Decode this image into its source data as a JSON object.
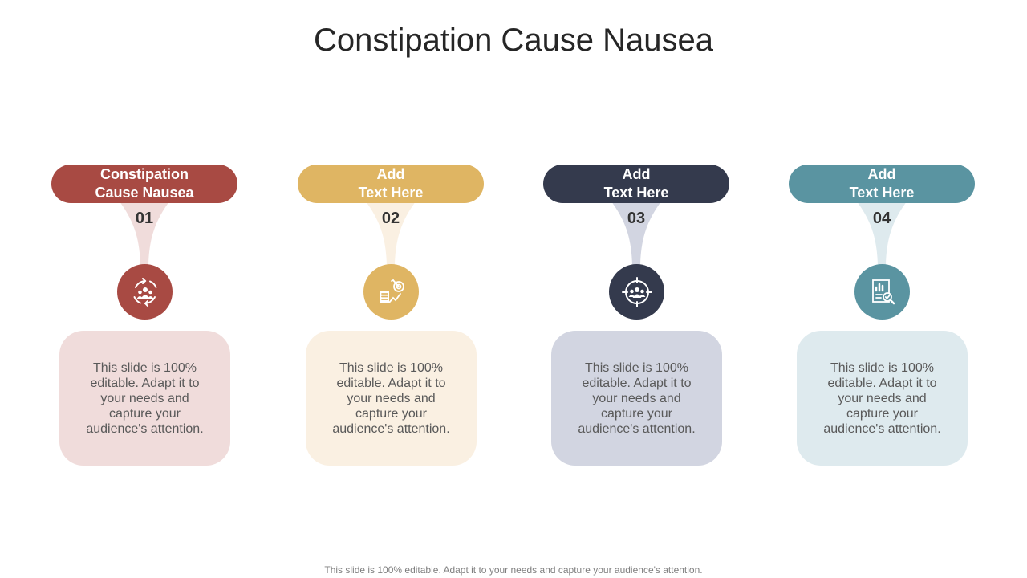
{
  "title": "Constipation Cause Nausea",
  "steps": [
    {
      "label_line1": "Constipation",
      "label_line2": "Cause Nausea",
      "number": "01",
      "icon": "team-cycle-icon",
      "text": "This slide is 100% editable. Adapt it to your needs and capture your audience's attention.",
      "color": "#A84A43",
      "light_color": "#F0DCDB"
    },
    {
      "label_line1": "Add",
      "label_line2": "Text Here",
      "number": "02",
      "icon": "growth-target-icon",
      "text": "This slide is 100% editable. Adapt it to your needs and capture your audience's attention.",
      "color": "#DFB563",
      "light_color": "#FAF0E2"
    },
    {
      "label_line1": "Add",
      "label_line2": "Text Here",
      "number": "03",
      "icon": "target-group-icon",
      "text": "This slide is 100% editable. Adapt it to your needs and capture your audience's attention.",
      "color": "#343A4D",
      "light_color": "#D2D5E1"
    },
    {
      "label_line1": "Add",
      "label_line2": "Text Here",
      "number": "04",
      "icon": "report-analysis-icon",
      "text": "This slide is 100% editable. Adapt it to your needs and capture your audience's attention.",
      "color": "#5A94A1",
      "light_color": "#DEEAEE"
    }
  ],
  "footer": "This slide is 100% editable. Adapt it to your needs and capture your audience's attention."
}
